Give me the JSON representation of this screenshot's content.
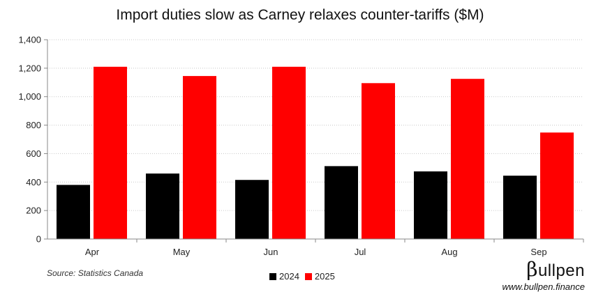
{
  "chart_data": {
    "type": "bar",
    "title": "Import duties slow as Carney relaxes counter-tariffs ($M)",
    "categories": [
      "Apr",
      "May",
      "Jun",
      "Jul",
      "Aug",
      "Sep"
    ],
    "series": [
      {
        "name": "2024",
        "color": "#000000",
        "values": [
          380,
          460,
          415,
          512,
          475,
          445
        ]
      },
      {
        "name": "2025",
        "color": "#ff0000",
        "values": [
          1210,
          1145,
          1210,
          1095,
          1125,
          748
        ]
      }
    ],
    "yticks": [
      "0",
      "200",
      "400",
      "600",
      "800",
      "1,000",
      "1,200",
      "1,400"
    ],
    "ylim": [
      0,
      1400
    ],
    "xlabel": "",
    "ylabel": "",
    "grid": true,
    "legend_position": "bottom"
  },
  "footer": {
    "source": "Source: Statistics Canada",
    "brand_beta": "β",
    "brand_name": "ullpen",
    "url": "www.bullpen.finance"
  }
}
